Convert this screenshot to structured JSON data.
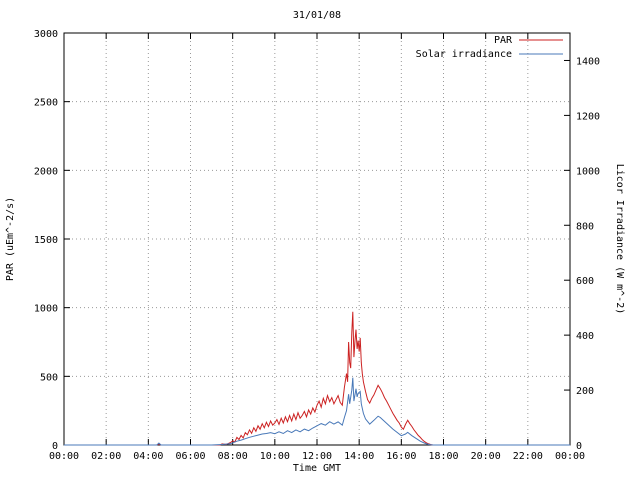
{
  "chart_data": {
    "type": "line",
    "title": "31/01/08",
    "xlabel": "Time GMT",
    "ylabel": "PAR (uEm^-2/s)",
    "y2label": "Licor Irradiance (W m^-2)",
    "xlim": [
      0,
      24
    ],
    "ylim": [
      0,
      3000
    ],
    "y2lim": [
      0,
      1500
    ],
    "grid": true,
    "legend_position": "top-right",
    "colors": {
      "par": "#cc2222",
      "solar": "#4878b8",
      "grid": "#9a9a9a",
      "border": "#000000"
    },
    "xticks": [
      [
        0,
        "00:00"
      ],
      [
        2,
        "02:00"
      ],
      [
        4,
        "04:00"
      ],
      [
        6,
        "06:00"
      ],
      [
        8,
        "08:00"
      ],
      [
        10,
        "10:00"
      ],
      [
        12,
        "12:00"
      ],
      [
        14,
        "14:00"
      ],
      [
        16,
        "16:00"
      ],
      [
        18,
        "18:00"
      ],
      [
        20,
        "20:00"
      ],
      [
        22,
        "22:00"
      ],
      [
        24,
        "00:00"
      ]
    ],
    "yticks": [
      [
        0,
        "0"
      ],
      [
        500,
        "500"
      ],
      [
        1000,
        "1000"
      ],
      [
        1500,
        "1500"
      ],
      [
        2000,
        "2000"
      ],
      [
        2500,
        "2500"
      ],
      [
        3000,
        "3000"
      ]
    ],
    "y2ticks": [
      [
        0,
        "0"
      ],
      [
        200,
        "200"
      ],
      [
        400,
        "400"
      ],
      [
        600,
        "600"
      ],
      [
        800,
        "800"
      ],
      [
        1000,
        "1000"
      ],
      [
        1200,
        "1200"
      ],
      [
        1400,
        "1400"
      ]
    ],
    "series": [
      {
        "name": "PAR",
        "axis": "y",
        "color": "#cc2222",
        "points": [
          [
            0,
            0
          ],
          [
            1,
            0
          ],
          [
            2,
            0
          ],
          [
            3,
            0
          ],
          [
            4,
            0
          ],
          [
            4.4,
            0
          ],
          [
            4.5,
            6
          ],
          [
            4.6,
            0
          ],
          [
            6,
            0
          ],
          [
            7,
            0
          ],
          [
            7.4,
            0
          ],
          [
            7.5,
            8
          ],
          [
            7.7,
            4
          ],
          [
            7.9,
            18
          ],
          [
            8.0,
            30
          ],
          [
            8.1,
            22
          ],
          [
            8.2,
            55
          ],
          [
            8.3,
            40
          ],
          [
            8.4,
            70
          ],
          [
            8.5,
            52
          ],
          [
            8.6,
            90
          ],
          [
            8.7,
            75
          ],
          [
            8.8,
            110
          ],
          [
            8.9,
            85
          ],
          [
            9.0,
            125
          ],
          [
            9.1,
            100
          ],
          [
            9.2,
            140
          ],
          [
            9.3,
            115
          ],
          [
            9.4,
            155
          ],
          [
            9.5,
            125
          ],
          [
            9.6,
            165
          ],
          [
            9.7,
            135
          ],
          [
            9.8,
            175
          ],
          [
            9.9,
            145
          ],
          [
            10.0,
            160
          ],
          [
            10.1,
            185
          ],
          [
            10.2,
            150
          ],
          [
            10.3,
            195
          ],
          [
            10.4,
            160
          ],
          [
            10.5,
            205
          ],
          [
            10.6,
            170
          ],
          [
            10.7,
            215
          ],
          [
            10.8,
            175
          ],
          [
            10.9,
            225
          ],
          [
            11.0,
            185
          ],
          [
            11.1,
            235
          ],
          [
            11.2,
            195
          ],
          [
            11.3,
            215
          ],
          [
            11.4,
            245
          ],
          [
            11.5,
            205
          ],
          [
            11.6,
            255
          ],
          [
            11.7,
            225
          ],
          [
            11.8,
            270
          ],
          [
            11.9,
            240
          ],
          [
            12.0,
            290
          ],
          [
            12.1,
            320
          ],
          [
            12.2,
            275
          ],
          [
            12.3,
            340
          ],
          [
            12.4,
            300
          ],
          [
            12.5,
            360
          ],
          [
            12.6,
            315
          ],
          [
            12.7,
            345
          ],
          [
            12.8,
            300
          ],
          [
            12.9,
            330
          ],
          [
            13.0,
            360
          ],
          [
            13.1,
            310
          ],
          [
            13.2,
            290
          ],
          [
            13.3,
            420
          ],
          [
            13.4,
            520
          ],
          [
            13.45,
            460
          ],
          [
            13.5,
            750
          ],
          [
            13.55,
            600
          ],
          [
            13.6,
            560
          ],
          [
            13.65,
            820
          ],
          [
            13.7,
            970
          ],
          [
            13.75,
            640
          ],
          [
            13.8,
            760
          ],
          [
            13.85,
            840
          ],
          [
            13.9,
            700
          ],
          [
            13.95,
            760
          ],
          [
            14.0,
            680
          ],
          [
            14.05,
            780
          ],
          [
            14.1,
            600
          ],
          [
            14.15,
            520
          ],
          [
            14.2,
            460
          ],
          [
            14.3,
            390
          ],
          [
            14.4,
            330
          ],
          [
            14.5,
            305
          ],
          [
            14.6,
            340
          ],
          [
            14.7,
            365
          ],
          [
            14.8,
            400
          ],
          [
            14.9,
            435
          ],
          [
            15.0,
            410
          ],
          [
            15.1,
            380
          ],
          [
            15.2,
            345
          ],
          [
            15.3,
            320
          ],
          [
            15.4,
            290
          ],
          [
            15.5,
            260
          ],
          [
            15.6,
            230
          ],
          [
            15.7,
            205
          ],
          [
            15.8,
            180
          ],
          [
            15.9,
            160
          ],
          [
            16.0,
            130
          ],
          [
            16.1,
            115
          ],
          [
            16.2,
            150
          ],
          [
            16.3,
            180
          ],
          [
            16.4,
            155
          ],
          [
            16.5,
            135
          ],
          [
            16.6,
            110
          ],
          [
            16.7,
            90
          ],
          [
            16.8,
            70
          ],
          [
            16.9,
            55
          ],
          [
            17.0,
            38
          ],
          [
            17.1,
            25
          ],
          [
            17.2,
            15
          ],
          [
            17.3,
            8
          ],
          [
            17.4,
            3
          ],
          [
            17.5,
            0
          ],
          [
            18,
            0
          ],
          [
            20,
            0
          ],
          [
            22,
            0
          ],
          [
            24,
            0
          ]
        ]
      },
      {
        "name": "Solar irradiance",
        "axis": "y2",
        "color": "#4878b8",
        "points": [
          [
            0,
            0
          ],
          [
            2,
            0
          ],
          [
            4,
            0
          ],
          [
            4.4,
            0
          ],
          [
            4.5,
            7
          ],
          [
            4.6,
            0
          ],
          [
            7,
            0
          ],
          [
            7.5,
            2
          ],
          [
            7.9,
            5
          ],
          [
            8.0,
            8
          ],
          [
            8.2,
            14
          ],
          [
            8.4,
            18
          ],
          [
            8.6,
            23
          ],
          [
            8.8,
            28
          ],
          [
            9.0,
            32
          ],
          [
            9.2,
            36
          ],
          [
            9.4,
            40
          ],
          [
            9.6,
            42
          ],
          [
            9.8,
            45
          ],
          [
            10.0,
            41
          ],
          [
            10.2,
            48
          ],
          [
            10.4,
            42
          ],
          [
            10.6,
            52
          ],
          [
            10.8,
            45
          ],
          [
            11.0,
            55
          ],
          [
            11.2,
            48
          ],
          [
            11.4,
            58
          ],
          [
            11.6,
            52
          ],
          [
            11.8,
            62
          ],
          [
            12.0,
            70
          ],
          [
            12.2,
            78
          ],
          [
            12.4,
            72
          ],
          [
            12.6,
            85
          ],
          [
            12.8,
            76
          ],
          [
            13.0,
            84
          ],
          [
            13.2,
            72
          ],
          [
            13.3,
            100
          ],
          [
            13.4,
            125
          ],
          [
            13.5,
            185
          ],
          [
            13.55,
            150
          ],
          [
            13.65,
            200
          ],
          [
            13.7,
            245
          ],
          [
            13.75,
            160
          ],
          [
            13.85,
            205
          ],
          [
            13.9,
            175
          ],
          [
            13.95,
            188
          ],
          [
            14.05,
            195
          ],
          [
            14.1,
            150
          ],
          [
            14.2,
            115
          ],
          [
            14.3,
            95
          ],
          [
            14.5,
            76
          ],
          [
            14.7,
            90
          ],
          [
            14.9,
            105
          ],
          [
            15.0,
            100
          ],
          [
            15.2,
            86
          ],
          [
            15.4,
            72
          ],
          [
            15.6,
            58
          ],
          [
            15.8,
            46
          ],
          [
            16.0,
            34
          ],
          [
            16.2,
            40
          ],
          [
            16.3,
            46
          ],
          [
            16.5,
            34
          ],
          [
            16.7,
            24
          ],
          [
            16.9,
            14
          ],
          [
            17.1,
            7
          ],
          [
            17.3,
            2
          ],
          [
            17.5,
            0
          ],
          [
            18,
            0
          ],
          [
            24,
            0
          ]
        ]
      }
    ]
  }
}
